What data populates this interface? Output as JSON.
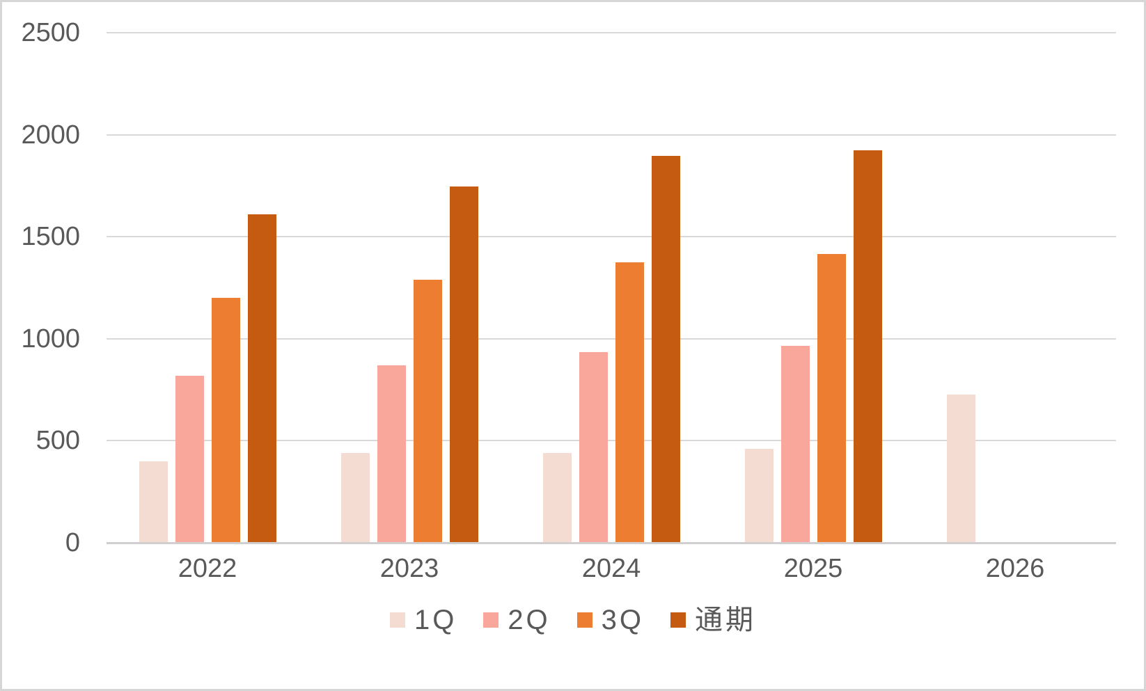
{
  "chart_data": {
    "type": "bar",
    "title": "",
    "xlabel": "",
    "ylabel": "",
    "categories": [
      "2022",
      "2023",
      "2024",
      "2025",
      "2026"
    ],
    "series": [
      {
        "name": "1Q",
        "color": "#f4dcd3",
        "values": [
          400,
          440,
          440,
          460,
          725
        ]
      },
      {
        "name": "2Q",
        "color": "#f9a79a",
        "values": [
          820,
          870,
          935,
          965,
          null
        ]
      },
      {
        "name": "3Q",
        "color": "#ed7d31",
        "values": [
          1200,
          1290,
          1375,
          1415,
          null
        ]
      },
      {
        "name": "通期",
        "color": "#c55a11",
        "values": [
          1610,
          1745,
          1895,
          1925,
          null
        ]
      }
    ],
    "ylim": [
      0,
      2500
    ],
    "yticks": [
      0,
      500,
      1000,
      1500,
      2000,
      2500
    ],
    "grid": "horizontal",
    "legend_position": "bottom"
  },
  "colors": {
    "text": "#595959",
    "gridline": "#d9d9d9",
    "axis_line": "#d0cece",
    "background": "#ffffff",
    "frame_border": "#d7d6d6"
  }
}
